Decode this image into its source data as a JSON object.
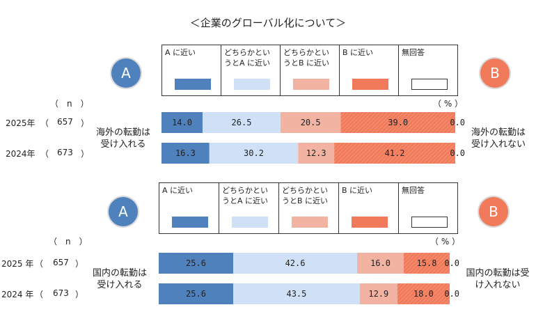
{
  "title": "＜企業のグローバル化について＞",
  "legend": [
    {
      "label": "A に近い",
      "color": "#4f81bd"
    },
    {
      "label": "どちらかとい\nうとA に近い",
      "color": "#cfe0f7"
    },
    {
      "label": "どちらかとい\nうとB に近い",
      "color": "#f2b3a3"
    },
    {
      "label": "B に近い",
      "color": "#f07a5a"
    },
    {
      "label": "無回答",
      "color": "#ffffff"
    }
  ],
  "circle_a": "A",
  "circle_b": "B",
  "n_label": "（　n　）",
  "pct_label": "（ % ）",
  "chart_data": [
    {
      "type": "bar",
      "orientation": "horizontal-stacked",
      "left_label": "海外の転勤は\n受け入れる",
      "right_label": "海外の転勤は\n受け入れない",
      "rows": [
        {
          "year": "2025年",
          "n": "657",
          "values": [
            14.0,
            26.5,
            20.5,
            39.0,
            0.0
          ]
        },
        {
          "year": "2024年",
          "n": "673",
          "values": [
            16.3,
            30.2,
            12.3,
            41.2,
            0.0
          ]
        }
      ]
    },
    {
      "type": "bar",
      "orientation": "horizontal-stacked",
      "left_label": "国内の転勤は\n受け入れる",
      "right_label": "国内の転勤は受\nけ入れない",
      "rows": [
        {
          "year": "2025 年",
          "n": "657",
          "values": [
            25.6,
            42.6,
            16.0,
            15.8,
            0.0
          ]
        },
        {
          "year": "2024 年",
          "n": "673",
          "values": [
            25.6,
            43.5,
            12.9,
            18.0,
            0.0
          ]
        }
      ]
    }
  ]
}
